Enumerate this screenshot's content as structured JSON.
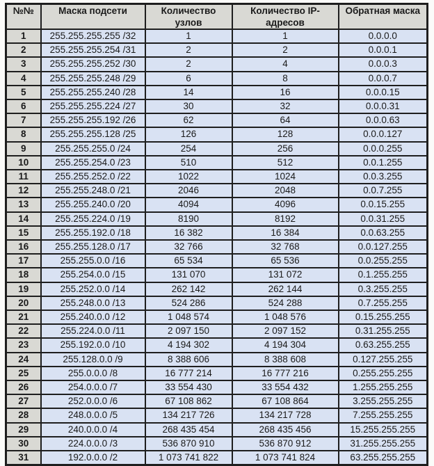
{
  "colors": {
    "header_bg": "#d9d9d4",
    "row_number_bg": "#d9d9d4",
    "data_cell_bg": "#d9e2f3",
    "border": "#1e1e1e",
    "text": "#1a1a1a"
  },
  "table": {
    "columns": [
      {
        "key": "num",
        "label": "№№"
      },
      {
        "key": "mask",
        "label": "Маска подсети"
      },
      {
        "key": "hosts",
        "label": "Количество\nузлов"
      },
      {
        "key": "ips",
        "label": "Количество IP-\nадресов"
      },
      {
        "key": "wildcard",
        "label": "Обратная маска"
      }
    ],
    "rows": [
      [
        "1",
        "255.255.255.255 /32",
        "1",
        "1",
        "0.0.0.0"
      ],
      [
        "2",
        "255.255.255.254 /31",
        "2",
        "2",
        "0.0.0.1"
      ],
      [
        "3",
        "255.255.255.252 /30",
        "2",
        "4",
        "0.0.0.3"
      ],
      [
        "4",
        "255.255.255.248 /29",
        "6",
        "8",
        "0.0.0.7"
      ],
      [
        "5",
        "255.255.255.240 /28",
        "14",
        "16",
        "0.0.0.15"
      ],
      [
        "6",
        "255.255.255.224 /27",
        "30",
        "32",
        "0.0.0.31"
      ],
      [
        "7",
        "255.255.255.192 /26",
        "62",
        "64",
        "0.0.0.63"
      ],
      [
        "8",
        "255.255.255.128 /25",
        "126",
        "128",
        "0.0.0.127"
      ],
      [
        "9",
        "255.255.255.0 /24",
        "254",
        "256",
        "0.0.0.255"
      ],
      [
        "10",
        "255.255.254.0 /23",
        "510",
        "512",
        "0.0.1.255"
      ],
      [
        "11",
        "255.255.252.0 /22",
        "1022",
        "1024",
        "0.0.3.255"
      ],
      [
        "12",
        "255.255.248.0 /21",
        "2046",
        "2048",
        "0.0.7.255"
      ],
      [
        "13",
        "255.255.240.0 /20",
        "4094",
        "4096",
        "0.0.15.255"
      ],
      [
        "14",
        "255.255.224.0 /19",
        "8190",
        "8192",
        "0.0.31.255"
      ],
      [
        "15",
        "255.255.192.0 /18",
        "16 382",
        "16 384",
        "0.0.63.255"
      ],
      [
        "16",
        "255.255.128.0 /17",
        "32 766",
        "32 768",
        "0.0.127.255"
      ],
      [
        "17",
        "255.255.0.0 /16",
        "65 534",
        "65 536",
        "0.0.255.255"
      ],
      [
        "18",
        "255.254.0.0 /15",
        "131 070",
        "131 072",
        "0.1.255.255"
      ],
      [
        "19",
        "255.252.0.0 /14",
        "262 142",
        "262 144",
        "0.3.255.255"
      ],
      [
        "20",
        "255.248.0.0 /13",
        "524 286",
        "524 288",
        "0.7.255.255"
      ],
      [
        "21",
        "255.240.0.0 /12",
        "1 048 574",
        "1 048 576",
        "0.15.255.255"
      ],
      [
        "22",
        "255.224.0.0 /11",
        "2 097 150",
        "2 097 152",
        "0.31.255.255"
      ],
      [
        "23",
        "255.192.0.0 /10",
        "4 194 302",
        "4 194 304",
        "0.63.255.255"
      ],
      [
        "24",
        "255.128.0.0 /9",
        "8 388 606",
        "8 388 608",
        "0.127.255.255"
      ],
      [
        "25",
        "255.0.0.0 /8",
        "16 777 214",
        "16 777 216",
        "0.255.255.255"
      ],
      [
        "26",
        "254.0.0.0 /7",
        "33 554 430",
        "33 554 432",
        "1.255.255.255"
      ],
      [
        "27",
        "252.0.0.0 /6",
        "67 108 862",
        "67 108 864",
        "3.255.255.255"
      ],
      [
        "28",
        "248.0.0.0 /5",
        "134 217 726",
        "134 217 728",
        "7.255.255.255"
      ],
      [
        "29",
        "240.0.0.0 /4",
        "268 435 454",
        "268 435 456",
        "15.255.255.255"
      ],
      [
        "30",
        "224.0.0.0 /3",
        "536 870 910",
        "536 870 912",
        "31.255.255.255"
      ],
      [
        "31",
        "192.0.0.0 /2",
        "1 073 741 822",
        "1 073 741 824",
        "63.255.255.255"
      ]
    ]
  }
}
